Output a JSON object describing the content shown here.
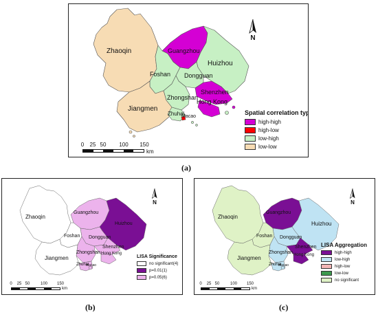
{
  "colors": {
    "high_high": "#d400d4",
    "high_low": "#ff0000",
    "low_high": "#c7f0c4",
    "low_low": "#f7dcb4",
    "sig_001": "#7a0f94",
    "sig_005": "#ecb3ec",
    "not_sig": "#ffffff",
    "lisa_hh": "#7a0f94",
    "lisa_lh": "#bfe3f3",
    "lisa_hl": "#f4b6b6",
    "lisa_ll": "#3d9a4e",
    "lisa_ns": "#dff2c6",
    "outline": "#555555"
  },
  "panel_a": {
    "caption": "(a)",
    "cities": {
      "zhaoqin": "Zhaoqin",
      "guangzhou": "Guangzhou",
      "huizhou": "Huizhou",
      "foshan": "Foshan",
      "dongguan": "Dongguan",
      "zhongshan": "Zhongshan",
      "shenzhen": "Shenzhen",
      "hongkong": "Hong Kong",
      "jiangmen": "Jiangmen",
      "zhuhai": "Zhuhai",
      "macao": "Macao"
    },
    "legend": {
      "title": "Spatial correlation types",
      "items": [
        "high-high",
        "high-low",
        "low-high",
        "low-low"
      ]
    },
    "scale": {
      "ticks": [
        "0",
        "25",
        "50",
        "100",
        "150"
      ],
      "unit": "km"
    },
    "north": "N"
  },
  "panel_b": {
    "caption": "(b)",
    "cities": {
      "zhaoqin": "Zhaoqin",
      "guangzhou": "Guangzhou",
      "huizhou": "Huizhou",
      "foshan": "Foshan",
      "dongguan": "Dongguan",
      "zhongshan": "Zhongshan",
      "shenzhen": "Shenzhen",
      "hongkong": "Hong Kong",
      "jiangmen": "Jiangmen",
      "zhuhai": "Zhuhai",
      "macao": "Macao"
    },
    "legend": {
      "title": "LISA Significance",
      "items": [
        "no significant(4)",
        "p=0.01(1)",
        "p=0.05(6)"
      ]
    },
    "scale": {
      "ticks": [
        "0",
        "25",
        "50",
        "100",
        "150"
      ],
      "unit": "km"
    },
    "north": "N"
  },
  "panel_c": {
    "caption": "(c)",
    "cities": {
      "zhaoqin": "Zhaoqin",
      "guangzhou": "Guangzhou",
      "huizhou": "Huizhou",
      "foshan": "Foshan",
      "dongguan": "Dongguan",
      "zhongshan": "Zhongshan",
      "shenzhen": "Shenzhen",
      "hongkong": "Hong Kong",
      "jiangmen": "Jiangmen",
      "zhuhai": "Zhuhai",
      "macao": "Macao"
    },
    "legend": {
      "title": "LISA Aggregation",
      "items": [
        "high-high",
        "low-high",
        "high-low",
        "low-low",
        "no significant"
      ]
    },
    "scale": {
      "ticks": [
        "0",
        "25",
        "50",
        "100",
        "150"
      ],
      "unit": "km"
    },
    "north": "N"
  }
}
